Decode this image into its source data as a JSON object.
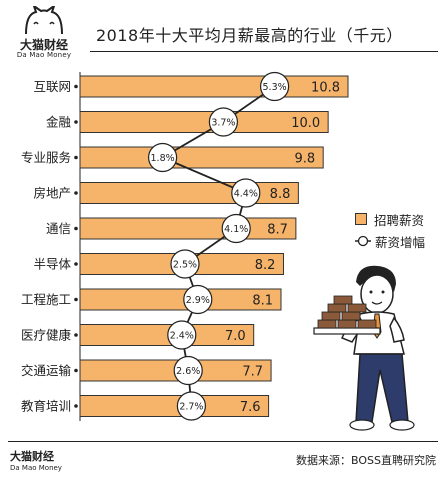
{
  "brand": {
    "name_cn": "大猫财经",
    "name_en": "Da Mao Money"
  },
  "header": {
    "title": "2018年十大平均月薪最高的行业（千元）"
  },
  "legend": {
    "salary_label": "招聘薪资",
    "growth_label": "薪资增幅",
    "salary_color": "#f6b46b"
  },
  "footer": {
    "source": "数据来源：BOSS直聘研究院"
  },
  "chart_data": {
    "type": "bar",
    "orientation": "horizontal",
    "title": "2018年十大平均月薪最高的行业（千元）",
    "categories": [
      "互联网",
      "金融",
      "专业服务",
      "房地产",
      "通信",
      "半导体",
      "工程施工",
      "医疗健康",
      "交通运输",
      "教育培训"
    ],
    "series": [
      {
        "name": "招聘薪资",
        "type": "bar",
        "values": [
          10.8,
          10.0,
          9.8,
          8.8,
          8.7,
          8.2,
          8.1,
          7.0,
          7.7,
          7.6
        ],
        "labels": [
          "10.8",
          "10.0",
          "9.8",
          "8.8",
          "8.7",
          "8.2",
          "8.1",
          "7.0",
          "7.7",
          "7.6"
        ],
        "color": "#f6b46b"
      },
      {
        "name": "薪资增幅",
        "type": "line",
        "values": [
          5.3,
          3.7,
          1.8,
          4.4,
          4.1,
          2.5,
          2.9,
          2.4,
          2.6,
          2.7
        ],
        "labels": [
          "5.3%",
          "3.7%",
          "1.8%",
          "4.4%",
          "4.1%",
          "2.5%",
          "2.9%",
          "2.4%",
          "2.6%",
          "2.7%"
        ],
        "color": "#222222"
      }
    ],
    "legend_position": "right"
  }
}
